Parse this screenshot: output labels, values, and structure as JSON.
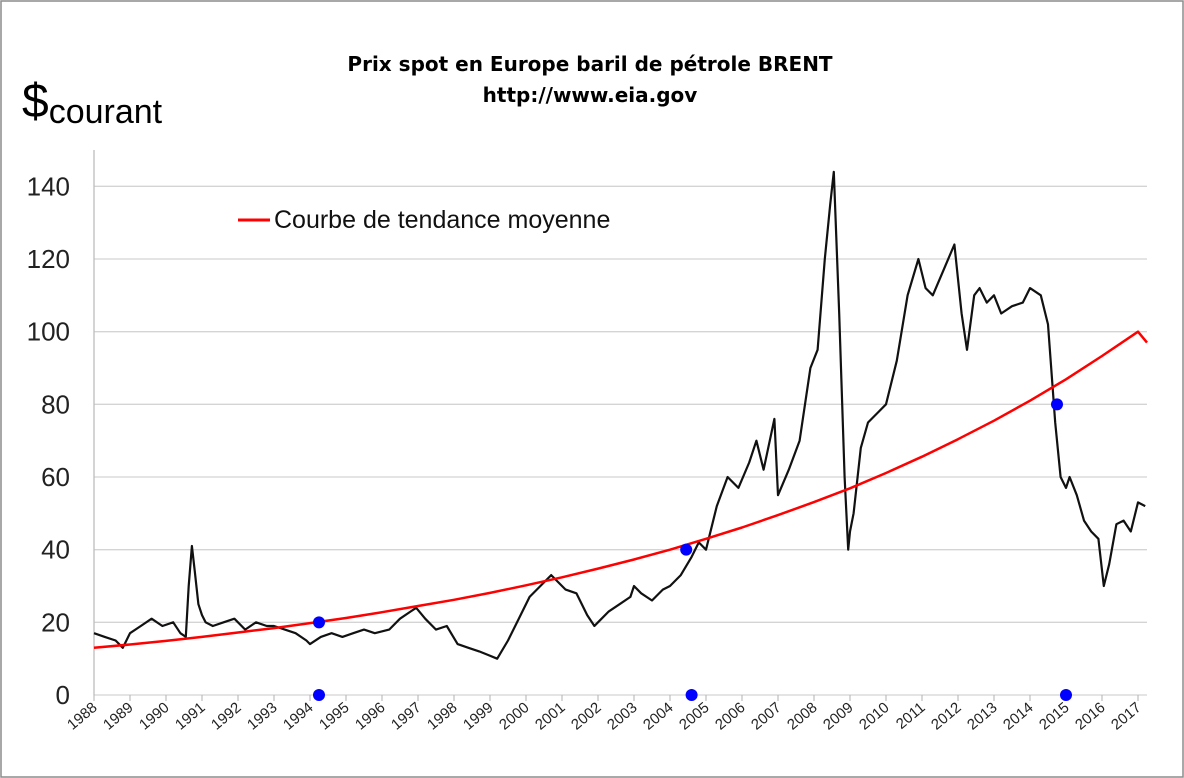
{
  "chart_data": {
    "type": "line",
    "title": "Prix spot en Europe baril de pétrole BRENT",
    "subtitle": "http://www.eia.gov",
    "ylabel_symbol": "$",
    "ylabel_sub": "courant",
    "ylim": [
      0,
      150
    ],
    "yticks": [
      0,
      20,
      40,
      60,
      80,
      100,
      120,
      140
    ],
    "xlim": [
      1988,
      2017.25
    ],
    "xticks": [
      "1988",
      "1989",
      "1990",
      "1991",
      "1992",
      "1993",
      "1994",
      "1995",
      "1996",
      "1997",
      "1998",
      "1999",
      "2000",
      "2001",
      "2002",
      "2003",
      "2004",
      "2005",
      "2006",
      "2007",
      "2008",
      "2009",
      "2010",
      "2011",
      "2012",
      "2013",
      "2014",
      "2015",
      "2016",
      "2017"
    ],
    "grid": true,
    "legend_position": "top-left",
    "colors": {
      "price": "#111111",
      "trend": "#ff0000",
      "markers": "#0000ff"
    },
    "series": [
      {
        "name": "",
        "color": "#111111",
        "x": [
          1988.0,
          1988.3,
          1988.6,
          1988.8,
          1989.0,
          1989.3,
          1989.6,
          1989.9,
          1990.2,
          1990.4,
          1990.55,
          1990.63,
          1990.72,
          1990.8,
          1990.9,
          1991.0,
          1991.1,
          1991.3,
          1991.6,
          1991.9,
          1992.2,
          1992.5,
          1992.8,
          1993.0,
          1993.3,
          1993.6,
          1993.9,
          1994.0,
          1994.3,
          1994.6,
          1994.9,
          1995.2,
          1995.5,
          1995.8,
          1996.2,
          1996.5,
          1996.8,
          1996.95,
          1997.2,
          1997.5,
          1997.8,
          1998.1,
          1998.4,
          1998.7,
          1998.95,
          1999.2,
          1999.5,
          1999.8,
          2000.1,
          2000.4,
          2000.7,
          2000.9,
          2001.1,
          2001.4,
          2001.7,
          2001.9,
          2002.0,
          2002.3,
          2002.6,
          2002.9,
          2003.0,
          2003.2,
          2003.5,
          2003.8,
          2004.0,
          2004.3,
          2004.6,
          2004.8,
          2005.0,
          2005.3,
          2005.6,
          2005.9,
          2006.2,
          2006.4,
          2006.6,
          2006.9,
          2007.0,
          2007.3,
          2007.6,
          2007.9,
          2008.1,
          2008.3,
          2008.45,
          2008.55,
          2008.7,
          2008.85,
          2008.95,
          2009.0,
          2009.1,
          2009.3,
          2009.5,
          2009.8,
          2010.0,
          2010.3,
          2010.6,
          2010.9,
          2011.1,
          2011.3,
          2011.6,
          2011.9,
          2012.1,
          2012.25,
          2012.45,
          2012.6,
          2012.8,
          2013.0,
          2013.2,
          2013.5,
          2013.8,
          2014.0,
          2014.3,
          2014.5,
          2014.7,
          2014.85,
          2015.0,
          2015.1,
          2015.3,
          2015.5,
          2015.7,
          2015.9,
          2016.05,
          2016.2,
          2016.4,
          2016.6,
          2016.8,
          2017.0,
          2017.2
        ],
        "y": [
          17,
          16,
          15,
          13,
          17,
          19,
          21,
          19,
          20,
          17,
          16,
          30,
          41,
          34,
          25,
          22,
          20,
          19,
          20,
          21,
          18,
          20,
          19,
          19,
          18,
          17,
          15,
          14,
          16,
          17,
          16,
          17,
          18,
          17,
          18,
          21,
          23,
          24,
          21,
          18,
          19,
          14,
          13,
          12,
          11,
          10,
          15,
          21,
          27,
          30,
          33,
          31,
          29,
          28,
          22,
          19,
          20,
          23,
          25,
          27,
          30,
          28,
          26,
          29,
          30,
          33,
          38,
          42,
          40,
          52,
          60,
          57,
          64,
          70,
          62,
          76,
          55,
          62,
          70,
          90,
          95,
          120,
          135,
          144,
          105,
          60,
          40,
          45,
          50,
          68,
          75,
          78,
          80,
          92,
          110,
          120,
          112,
          110,
          117,
          124,
          105,
          95,
          110,
          112,
          108,
          110,
          105,
          107,
          108,
          112,
          110,
          102,
          75,
          60,
          57,
          60,
          55,
          48,
          45,
          43,
          30,
          36,
          47,
          48,
          45,
          53,
          52
        ]
      },
      {
        "name": "Courbe de tendance moyenne",
        "color": "#ff0000",
        "x": [
          1988,
          1989,
          1990,
          1991,
          1992,
          1993,
          1994,
          1995,
          1996,
          1997,
          1998,
          1999,
          2000,
          2001,
          2002,
          2003,
          2004,
          2005,
          2006,
          2007,
          2008,
          2009,
          2010,
          2011,
          2012,
          2013,
          2014,
          2015,
          2016,
          2017,
          2017.25
        ],
        "y": [
          13.0,
          13.9,
          14.9,
          16.0,
          17.2,
          18.4,
          19.8,
          21.2,
          22.8,
          24.5,
          26.2,
          28.1,
          30.2,
          32.4,
          34.8,
          37.3,
          40.0,
          43.0,
          46.1,
          49.5,
          53.1,
          56.9,
          61.1,
          65.6,
          70.4,
          75.5,
          81.0,
          86.9,
          93.3,
          100.0,
          97.0
        ]
      }
    ],
    "markers": [
      {
        "x": 1994.25,
        "y": 20
      },
      {
        "x": 2004.45,
        "y": 40
      },
      {
        "x": 2014.75,
        "y": 80
      },
      {
        "x": 1994.25,
        "y": 0
      },
      {
        "x": 2004.6,
        "y": 0
      },
      {
        "x": 2015.0,
        "y": 0
      }
    ]
  }
}
